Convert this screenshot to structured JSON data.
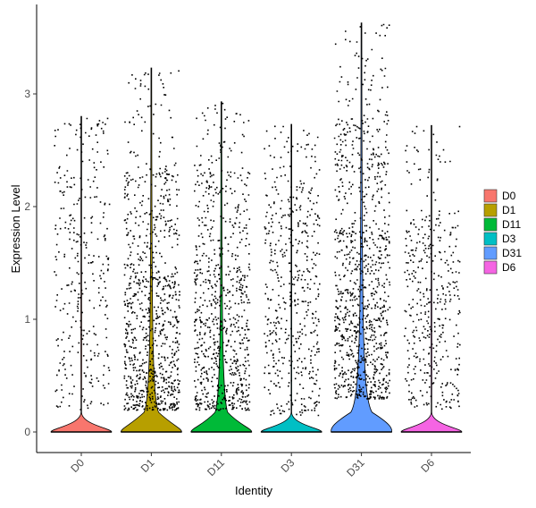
{
  "chart_data": {
    "type": "violin",
    "title": "",
    "xlabel": "Identity",
    "ylabel": "Expression Level",
    "ylim": [
      -0.2,
      3.75
    ],
    "yticks": [
      0,
      1,
      2,
      3
    ],
    "grid": false,
    "legend": {
      "placement": "right"
    },
    "categories": [
      "D0",
      "D1",
      "D11",
      "D3",
      "D31",
      "D6"
    ],
    "colors": [
      "#F8766D",
      "#B79F00",
      "#00BA38",
      "#00BFC4",
      "#619CFF",
      "#F564E3"
    ],
    "series": [
      {
        "name": "D0",
        "max": 2.8,
        "dense_top": 2.5,
        "dense_bottom": 0.2,
        "violin_bulge": 0.0,
        "point_density": 0.35
      },
      {
        "name": "D1",
        "max": 3.23,
        "dense_top": 2.35,
        "dense_bottom": 0.2,
        "violin_bulge": 0.15,
        "point_density": 1.0
      },
      {
        "name": "D11",
        "max": 2.93,
        "dense_top": 2.35,
        "dense_bottom": 0.2,
        "violin_bulge": 0.13,
        "point_density": 0.85
      },
      {
        "name": "D3",
        "max": 2.73,
        "dense_top": 2.2,
        "dense_bottom": 0.15,
        "violin_bulge": 0.0,
        "point_density": 0.55
      },
      {
        "name": "D31",
        "max": 3.63,
        "dense_top": 2.8,
        "dense_bottom": 0.3,
        "violin_bulge": 0.22,
        "point_density": 1.1
      },
      {
        "name": "D6",
        "max": 2.72,
        "dense_top": 2.0,
        "dense_bottom": 0.2,
        "violin_bulge": 0.0,
        "point_density": 0.45
      }
    ]
  }
}
